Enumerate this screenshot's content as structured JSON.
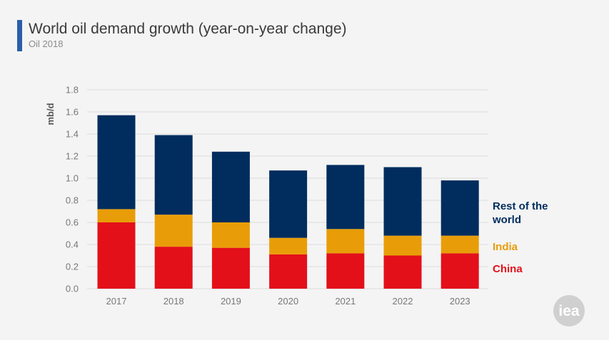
{
  "header": {
    "title": "World oil demand growth (year-on-year change)",
    "subtitle": "Oil 2018"
  },
  "colors": {
    "title_bar": "#2a5ea8",
    "china": "#e3101a",
    "india": "#e89d08",
    "rest": "#002d5e",
    "grid": "#dcdcdc",
    "logo": "#d0d0d0"
  },
  "logo": {
    "text": "iea",
    "icon": "iea-logo-icon"
  },
  "chart_data": {
    "type": "bar",
    "stacked": true,
    "categories": [
      "2017",
      "2018",
      "2019",
      "2020",
      "2021",
      "2022",
      "2023"
    ],
    "ylabel": "mb/d",
    "ylim": [
      0,
      1.8
    ],
    "yticks": [
      "0.0",
      "0.2",
      "0.4",
      "0.6",
      "0.8",
      "1.0",
      "1.2",
      "1.4",
      "1.6",
      "1.8"
    ],
    "grid": true,
    "legend_position": "right",
    "series": [
      {
        "name": "China",
        "key": "china",
        "values": [
          0.6,
          0.38,
          0.37,
          0.31,
          0.32,
          0.3,
          0.32
        ]
      },
      {
        "name": "India",
        "key": "india",
        "values": [
          0.12,
          0.29,
          0.23,
          0.15,
          0.22,
          0.18,
          0.16
        ]
      },
      {
        "name": "Rest of the world",
        "key": "rest",
        "values": [
          0.85,
          0.72,
          0.64,
          0.61,
          0.58,
          0.62,
          0.5
        ]
      }
    ],
    "legend": [
      {
        "key": "rest",
        "lines": [
          "Rest of the",
          "world"
        ]
      },
      {
        "key": "india",
        "lines": [
          "India"
        ]
      },
      {
        "key": "china",
        "lines": [
          "China"
        ]
      }
    ]
  }
}
